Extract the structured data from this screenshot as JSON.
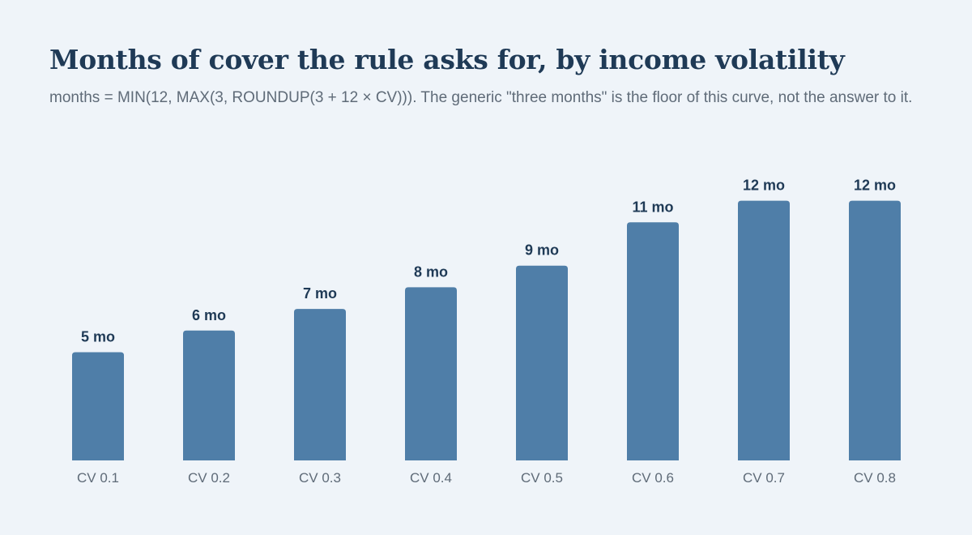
{
  "header": {
    "title": "Months of cover the rule asks for, by income volatility",
    "subtitle": "months = MIN(12, MAX(3, ROUNDUP(3 + 12 × CV))). The generic \"three months\" is the floor of this curve, not the answer to it."
  },
  "colors": {
    "background": "#eff4f9",
    "bar": "#4f7ea8",
    "title": "#1f3a56",
    "value_label": "#1f3a56",
    "tick_label": "#5f6b78"
  },
  "chart_data": {
    "type": "bar",
    "categories": [
      "CV 0.1",
      "CV 0.2",
      "CV 0.3",
      "CV 0.4",
      "CV 0.5",
      "CV 0.6",
      "CV 0.7",
      "CV 0.8"
    ],
    "values": [
      5,
      6,
      7,
      8,
      9,
      11,
      12,
      12
    ],
    "value_labels": [
      "5 mo",
      "6 mo",
      "7 mo",
      "8 mo",
      "9 mo",
      "11 mo",
      "12 mo",
      "12 mo"
    ],
    "xlabel": "",
    "ylabel": "",
    "ylim": [
      0,
      12
    ],
    "grid": false,
    "legend": "none"
  }
}
